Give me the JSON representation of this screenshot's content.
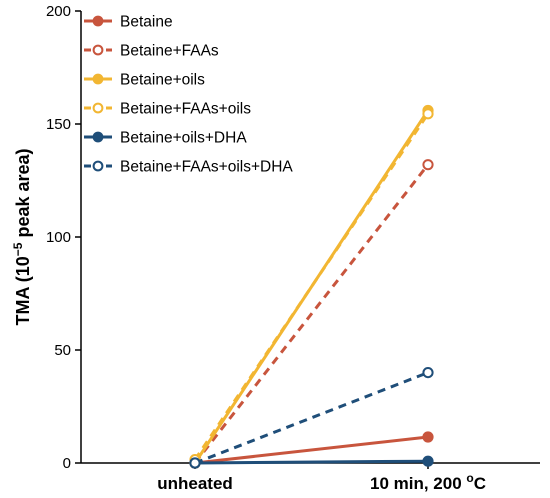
{
  "chart_data": {
    "type": "line",
    "title": "",
    "xlabel": "",
    "ylabel_main": "TMA (10",
    "ylabel_sup": "−5",
    "ylabel_tail": " peak area)",
    "ylim": [
      0,
      200
    ],
    "yticks": [
      "0",
      "50",
      "100",
      "150",
      "200"
    ],
    "categories": [
      "unheated",
      "10 min, 200 °C"
    ],
    "category_parts": [
      {
        "main": "unheated",
        "sup": ""
      },
      {
        "main": "10 min, 200 ",
        "sup": "o",
        "tail": "C"
      }
    ],
    "series": [
      {
        "name": "Betaine",
        "values": [
          0,
          11.5
        ],
        "color": "#c8553d",
        "dashed": false,
        "filled": true
      },
      {
        "name": "Betaine+FAAs",
        "values": [
          0,
          132
        ],
        "color": "#c8553d",
        "dashed": true,
        "filled": false
      },
      {
        "name": "Betaine+oils",
        "values": [
          0,
          156
        ],
        "color": "#f2b632",
        "dashed": false,
        "filled": true
      },
      {
        "name": "Betaine+FAAs+oils",
        "values": [
          1.5,
          154.5
        ],
        "color": "#f2b632",
        "dashed": true,
        "filled": false
      },
      {
        "name": "Betaine+oils+DHA",
        "values": [
          0,
          0.8
        ],
        "color": "#1f4e79",
        "dashed": false,
        "filled": true
      },
      {
        "name": "Betaine+FAAs+oils+DHA",
        "values": [
          0,
          40
        ],
        "color": "#1f4e79",
        "dashed": true,
        "filled": false
      }
    ],
    "legend_position": "top-left",
    "grid": false
  }
}
